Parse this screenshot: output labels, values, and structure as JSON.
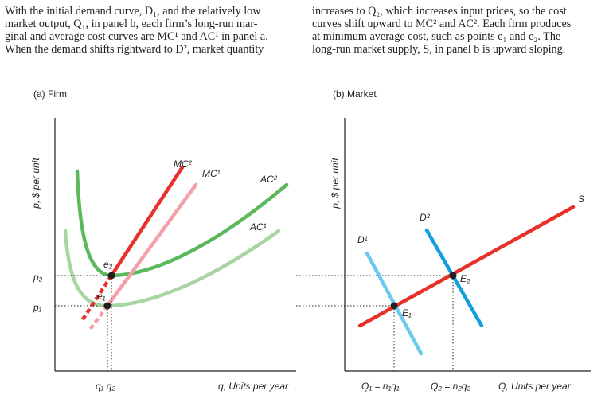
{
  "paragraph": {
    "left_lines": [
      "With the initial demand curve, D₁, and the relatively low",
      "market output, Q₁, in panel b, each firm’s long-run mar-",
      "ginal and average cost curves are MC¹ and AC¹ in panel a.",
      "When the demand shifts rightward to D², market quantity"
    ],
    "right_lines": [
      "increases to Q₂, which increases input prices, so the cost",
      "curves shift upward to MC² and AC². Each firm produces",
      "at minimum average cost, such as points e₁ and e₂. The",
      "long-run market supply, S, in panel b is upward sloping."
    ]
  },
  "panel_a": {
    "title": "(a) Firm",
    "ylabel": "p, $ per unit",
    "xlabel": "q, Units per year",
    "price_ticks": [
      "p₂",
      "p₁"
    ],
    "quantity_ticks": "q₁ q₂",
    "curve_labels": {
      "mc2": "MC²",
      "mc1": "MC¹",
      "ac2": "AC²",
      "ac1": "AC¹"
    },
    "points": {
      "e2": "e₂",
      "e1": "e₁"
    }
  },
  "panel_b": {
    "title": "(b) Market",
    "ylabel": "p, $ per unit",
    "xlabel": "Q, Units per year",
    "quantity_ticks": [
      "Q₁ = n₁q₁",
      "Q₂ = n₂q₂"
    ],
    "curve_labels": {
      "d1": "D¹",
      "d2": "D²",
      "s": "S"
    },
    "points": {
      "E1": "E₁",
      "E2": "E₂"
    }
  },
  "colors": {
    "mc2": "#e8312a",
    "mc1": "#f4a0a8",
    "ac2": "#5cb85c",
    "ac1": "#a8d5a2",
    "d1": "#6ccaee",
    "d2": "#139fdd",
    "s": "#e8312a",
    "axis": "#231f20"
  }
}
